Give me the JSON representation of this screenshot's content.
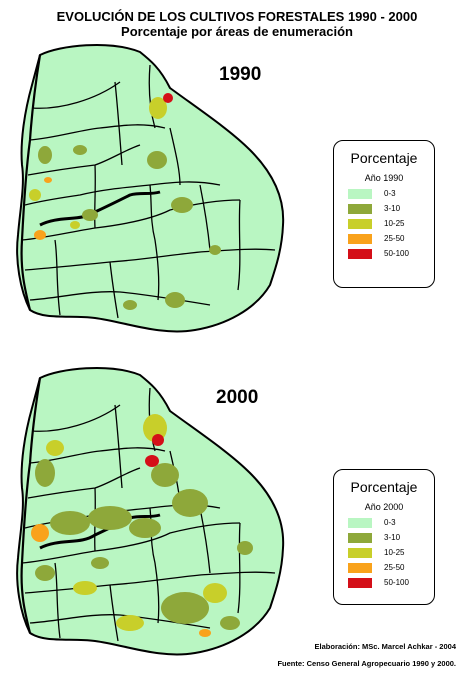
{
  "title": "EVOLUCIÓN DE LOS CULTIVOS FORESTALES 1990 - 2000",
  "subtitle": "Porcentaje por áreas de enumeración",
  "maps": [
    {
      "year": "1990",
      "legend": {
        "title": "Porcentaje",
        "subtitle": "Año 1990",
        "classes": [
          {
            "label": "0-3",
            "color": "#b9f6c2"
          },
          {
            "label": "3-10",
            "color": "#8ea83a"
          },
          {
            "label": "10-25",
            "color": "#c8cf2a"
          },
          {
            "label": "25-50",
            "color": "#f9a21b"
          },
          {
            "label": "50-100",
            "color": "#d40f18"
          }
        ]
      }
    },
    {
      "year": "2000",
      "legend": {
        "title": "Porcentaje",
        "subtitle": "Año 2000",
        "classes": [
          {
            "label": "0-3",
            "color": "#b9f6c2"
          },
          {
            "label": "3-10",
            "color": "#8ea83a"
          },
          {
            "label": "10-25",
            "color": "#c8cf2a"
          },
          {
            "label": "25-50",
            "color": "#f9a21b"
          },
          {
            "label": "50-100",
            "color": "#d40f18"
          }
        ]
      }
    }
  ],
  "credits": {
    "author": "Elaboración: MSc. Marcel Achkar - 2004",
    "source": "Fuente: Censo General Agropecuario 1990 y 2000."
  }
}
